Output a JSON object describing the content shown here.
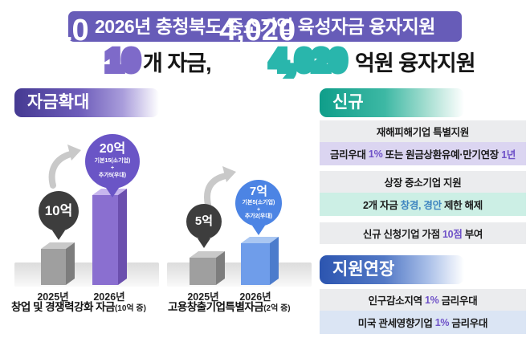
{
  "colors": {
    "header_bg": "#675cb8",
    "count_outline": "#7e6ac9",
    "amount_outline": "#29b6ac",
    "expand_badge_start": "#453a92",
    "new_badge_start": "#0f9e8a",
    "extend_badge_start": "#2c55b0",
    "accent_purple": "#6f52c8",
    "accent_blue": "#3f85c0",
    "bar_2025": "#9f9f9f",
    "bar_2026_chart1": "#8a6fd0",
    "bar_2026_chart2": "#6f9dea",
    "balloon_dark": "#3d3d3d"
  },
  "header": {
    "title": "2026년 충청북도 중소기업 육성자금 융자지원"
  },
  "subtitle": {
    "count": "10",
    "count_suffix": "개 자금, ",
    "amount": "4,020",
    "amount_suffix": " 억원 융자지원"
  },
  "expand": {
    "badge": "자금확대",
    "charts": [
      {
        "name": "창업 및 경쟁력강화 자금",
        "note": "(10억 증)",
        "prev": {
          "value": "10억",
          "year": "2025년"
        },
        "next": {
          "value": "20억",
          "line1": "기본15(소기업)",
          "plus": "+",
          "line2": "추가5(우대)",
          "year": "2026년"
        }
      },
      {
        "name": "고용창출기업특별자금",
        "note": "(2억 증)",
        "prev": {
          "value": "5억",
          "year": "2025년"
        },
        "next": {
          "value": "7억",
          "line1": "기본5(소기업)",
          "plus": "+",
          "line2": "추가2(우대)",
          "year": "2026년"
        }
      }
    ]
  },
  "new_section": {
    "badge": "신규",
    "rows": [
      {
        "style": "gray",
        "parts": [
          {
            "text": "재해피해기업 특별지원",
            "color": "dark"
          }
        ]
      },
      {
        "style": "purple",
        "parts": [
          {
            "text": "금리우대 ",
            "color": "dark"
          },
          {
            "text": "1%",
            "color": "purple"
          },
          {
            "text": " 또는 원금상환유예·만기연장 ",
            "color": "dark"
          },
          {
            "text": "1년",
            "color": "purple"
          }
        ]
      },
      {
        "style": "gray",
        "parts": [
          {
            "text": "상장 중소기업 지원",
            "color": "dark"
          }
        ]
      },
      {
        "style": "mint",
        "parts": [
          {
            "text": "2개 자금 ",
            "color": "dark"
          },
          {
            "text": "창경, 경안",
            "color": "blue"
          },
          {
            "text": " 제한 해제",
            "color": "dark"
          }
        ]
      },
      {
        "style": "gray",
        "parts": [
          {
            "text": "신규 신청기업 가점 ",
            "color": "dark"
          },
          {
            "text": "10점",
            "color": "purple"
          },
          {
            "text": " 부여",
            "color": "dark"
          }
        ]
      }
    ]
  },
  "extend_section": {
    "badge": "지원연장",
    "rows": [
      {
        "style": "gray",
        "parts": [
          {
            "text": "인구감소지역 ",
            "color": "dark"
          },
          {
            "text": "1%",
            "color": "purple"
          },
          {
            "text": " 금리우대",
            "color": "dark"
          }
        ]
      },
      {
        "style": "blue",
        "parts": [
          {
            "text": "미국 관세영향기업 ",
            "color": "dark"
          },
          {
            "text": "1%",
            "color": "purple"
          },
          {
            "text": " 금리우대",
            "color": "dark"
          }
        ]
      }
    ]
  },
  "chart_data": [
    {
      "type": "bar",
      "title": "창업 및 경쟁력강화 자금(10억 증)",
      "categories": [
        "2025년",
        "2026년"
      ],
      "values": [
        10,
        20
      ],
      "unit": "억원",
      "annotations": [
        "10억",
        "20억 = 기본15(소기업) + 추가5(우대)"
      ],
      "ylim": [
        0,
        20
      ],
      "grid": false,
      "legend": "none"
    },
    {
      "type": "bar",
      "title": "고용창출기업특별자금(2억 증)",
      "categories": [
        "2025년",
        "2026년"
      ],
      "values": [
        5,
        7
      ],
      "unit": "억원",
      "annotations": [
        "5억",
        "7억 = 기본5(소기업) + 추가2(우대)"
      ],
      "ylim": [
        0,
        20
      ],
      "grid": false,
      "legend": "none"
    }
  ]
}
